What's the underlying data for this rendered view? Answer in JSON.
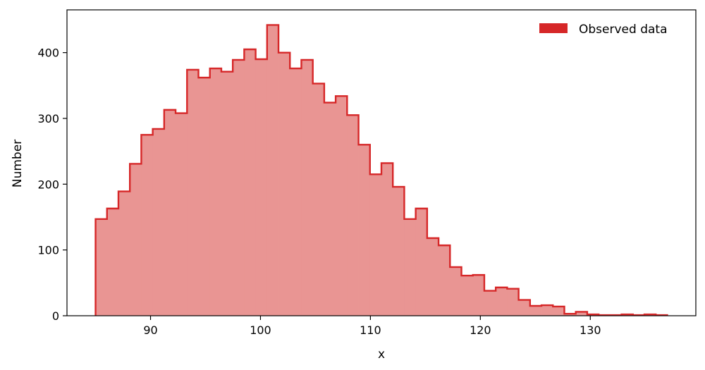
{
  "chart_data": {
    "type": "bar",
    "xlabel": "x",
    "ylabel": "Number",
    "xlim": [
      82.4,
      139.6
    ],
    "ylim": [
      0,
      465
    ],
    "x_ticks": [
      90,
      100,
      110,
      120,
      130
    ],
    "y_ticks": [
      0,
      100,
      200,
      300,
      400
    ],
    "grid": false,
    "legend_position": "top-right",
    "colors": {
      "fill": "#e99593",
      "edge": "#d62728",
      "legend_patch": "#d62728"
    },
    "series": [
      {
        "name": "Observed data",
        "bin_edges": [
          85.0,
          86.04,
          87.08,
          88.12,
          89.16,
          90.2,
          91.24,
          92.28,
          93.32,
          94.36,
          95.4,
          96.44,
          97.48,
          98.52,
          99.56,
          100.6,
          101.64,
          102.68,
          103.72,
          104.76,
          105.8,
          106.84,
          107.88,
          108.92,
          109.96,
          111.0,
          112.04,
          113.08,
          114.12,
          115.16,
          116.2,
          117.24,
          118.28,
          119.32,
          120.36,
          121.4,
          122.44,
          123.48,
          124.52,
          125.56,
          126.6,
          127.64,
          128.68,
          129.72,
          130.76,
          131.8,
          132.84,
          133.88,
          134.92,
          135.96,
          137.0
        ],
        "counts": [
          147,
          163,
          189,
          231,
          275,
          284,
          313,
          308,
          374,
          362,
          376,
          371,
          389,
          405,
          390,
          442,
          400,
          376,
          389,
          353,
          324,
          334,
          305,
          260,
          215,
          232,
          196,
          147,
          163,
          118,
          107,
          74,
          61,
          62,
          38,
          43,
          41,
          24,
          15,
          16,
          14,
          3,
          6,
          2,
          1,
          1,
          2,
          1,
          2,
          1
        ]
      }
    ]
  }
}
